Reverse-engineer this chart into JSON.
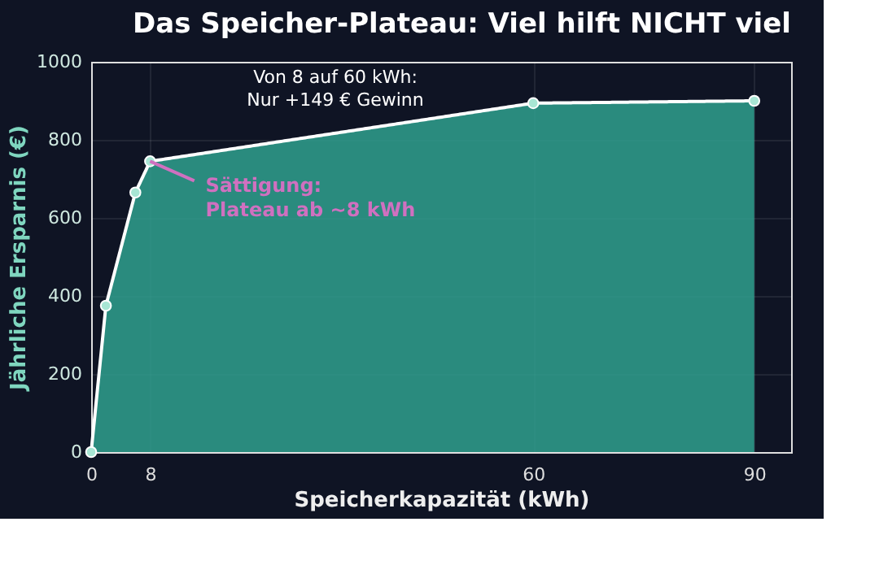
{
  "chart_data": {
    "type": "area",
    "title": "Das Speicher-Plateau: Viel hilft NICHT viel",
    "xlabel": "Speicherkapazität (kWh)",
    "ylabel": "Jährliche Ersparnis (€)",
    "x": [
      0,
      2,
      6,
      8,
      60,
      90
    ],
    "series": [
      {
        "color": "#2fa08e",
        "values": [
          0,
          375,
          665,
          745,
          894,
          900
        ]
      }
    ],
    "xlim": [
      0,
      95
    ],
    "ylim": [
      0,
      1000
    ],
    "xticks": [
      0,
      8,
      60,
      90
    ],
    "yticks": [
      0,
      200,
      400,
      600,
      800,
      1000
    ],
    "grid": true,
    "marker": "circle",
    "line_style": "solid",
    "annotations": [
      "Von 8 auf 60 kWh:\nNur +149 € Gewinn",
      {
        "text": "Sättigung:\nPlateau ab ~8 kWh",
        "x": 8,
        "y": 745
      }
    ]
  }
}
